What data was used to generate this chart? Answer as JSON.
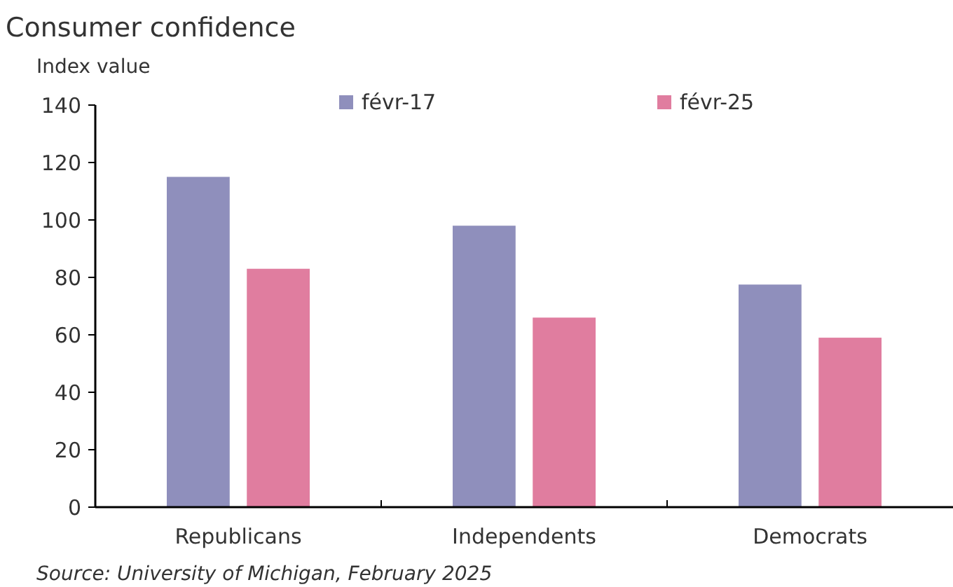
{
  "chart_data": {
    "type": "bar",
    "title": "Consumer confidence",
    "ylabel": "Index value",
    "categories": [
      "Republicans",
      "Independents",
      "Democrats"
    ],
    "series": [
      {
        "name": "févr-17",
        "color": "#8f8fbc",
        "values": [
          115,
          98,
          77.5
        ]
      },
      {
        "name": "févr-25",
        "color": "#e07d9f",
        "values": [
          83,
          66,
          59
        ]
      }
    ],
    "ylim": [
      0,
      140
    ],
    "yticks": [
      0,
      20,
      40,
      60,
      80,
      100,
      120,
      140
    ],
    "grid": false,
    "legend": "top",
    "annotations": [
      "Source: University of Michigan, February 2025"
    ]
  }
}
